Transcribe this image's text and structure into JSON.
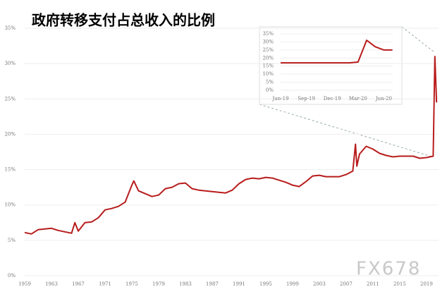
{
  "chart_data": [
    {
      "type": "line",
      "title": "政府转移支付占总收入的比例",
      "x": [
        1959,
        1960,
        1961,
        1962,
        1963,
        1964,
        1965,
        1966,
        1966.5,
        1967,
        1968,
        1969,
        1970,
        1971,
        1972,
        1973,
        1974,
        1975,
        1975.3,
        1976,
        1977,
        1978,
        1979,
        1980,
        1981,
        1982,
        1983,
        1984,
        1985,
        1986,
        1987,
        1988,
        1989,
        1990,
        1991,
        1992,
        1993,
        1994,
        1995,
        1996,
        1997,
        1998,
        1999,
        2000,
        2001,
        2002,
        2003,
        2004,
        2005,
        2006,
        2007,
        2008,
        2008.4,
        2008.6,
        2009,
        2010,
        2011,
        2012,
        2013,
        2014,
        2015,
        2016,
        2017,
        2018,
        2019,
        2020,
        2020.25,
        2020.5
      ],
      "values": [
        6.1,
        5.9,
        6.5,
        6.6,
        6.7,
        6.4,
        6.2,
        6.0,
        7.5,
        6.3,
        7.5,
        7.6,
        8.2,
        9.3,
        9.5,
        9.8,
        10.4,
        12.8,
        13.4,
        12.0,
        11.6,
        11.2,
        11.4,
        12.3,
        12.5,
        13.0,
        13.1,
        12.3,
        12.1,
        12.0,
        11.9,
        11.8,
        11.7,
        12.1,
        13.0,
        13.6,
        13.8,
        13.7,
        13.9,
        13.8,
        13.5,
        13.2,
        12.8,
        12.6,
        13.3,
        14.1,
        14.2,
        14.0,
        14.0,
        14.0,
        14.3,
        14.8,
        18.6,
        15.5,
        17.2,
        18.3,
        17.9,
        17.3,
        17.0,
        16.8,
        16.9,
        16.9,
        16.9,
        16.6,
        16.7,
        16.9,
        31.0,
        24.5
      ],
      "color": "#b81c1c",
      "xlim": [
        1959,
        2020.8
      ],
      "xticks": [
        1959,
        1963,
        1967,
        1971,
        1975,
        1979,
        1983,
        1987,
        1991,
        1995,
        1999,
        2003,
        2007,
        2011,
        2015,
        2019
      ],
      "ylim": [
        0,
        35
      ],
      "yticks": [
        {
          "value": 0,
          "label": "0%"
        },
        {
          "value": 5,
          "label": "5%"
        },
        {
          "value": 10,
          "label": "10%"
        },
        {
          "value": 15,
          "label": "15%"
        },
        {
          "value": 20,
          "label": "20%"
        },
        {
          "value": 25,
          "label": "25%"
        },
        {
          "value": 30,
          "label": "30%"
        },
        {
          "value": 35,
          "label": "35%"
        }
      ],
      "grid": true,
      "watermark": "FX678"
    },
    {
      "type": "line",
      "categories": [
        "Jun-19",
        null,
        null,
        "Sep-19",
        null,
        null,
        "Dec-19",
        null,
        null,
        "Mar-20",
        null,
        null,
        "Jun-20",
        null
      ],
      "values": [
        17,
        17,
        17,
        17,
        17,
        17,
        17,
        17,
        17,
        17.5,
        31,
        27,
        25,
        25
      ],
      "color": "#b81c1c",
      "ylim": [
        0,
        35
      ],
      "yticks": [
        {
          "value": 0,
          "label": "0%"
        },
        {
          "value": 5,
          "label": "5%"
        },
        {
          "value": 10,
          "label": "10%"
        },
        {
          "value": 15,
          "label": "15%"
        },
        {
          "value": 20,
          "label": "20%"
        },
        {
          "value": 25,
          "label": "25%"
        },
        {
          "value": 30,
          "label": "30%"
        },
        {
          "value": 35,
          "label": "35%"
        }
      ],
      "grid": true
    }
  ]
}
